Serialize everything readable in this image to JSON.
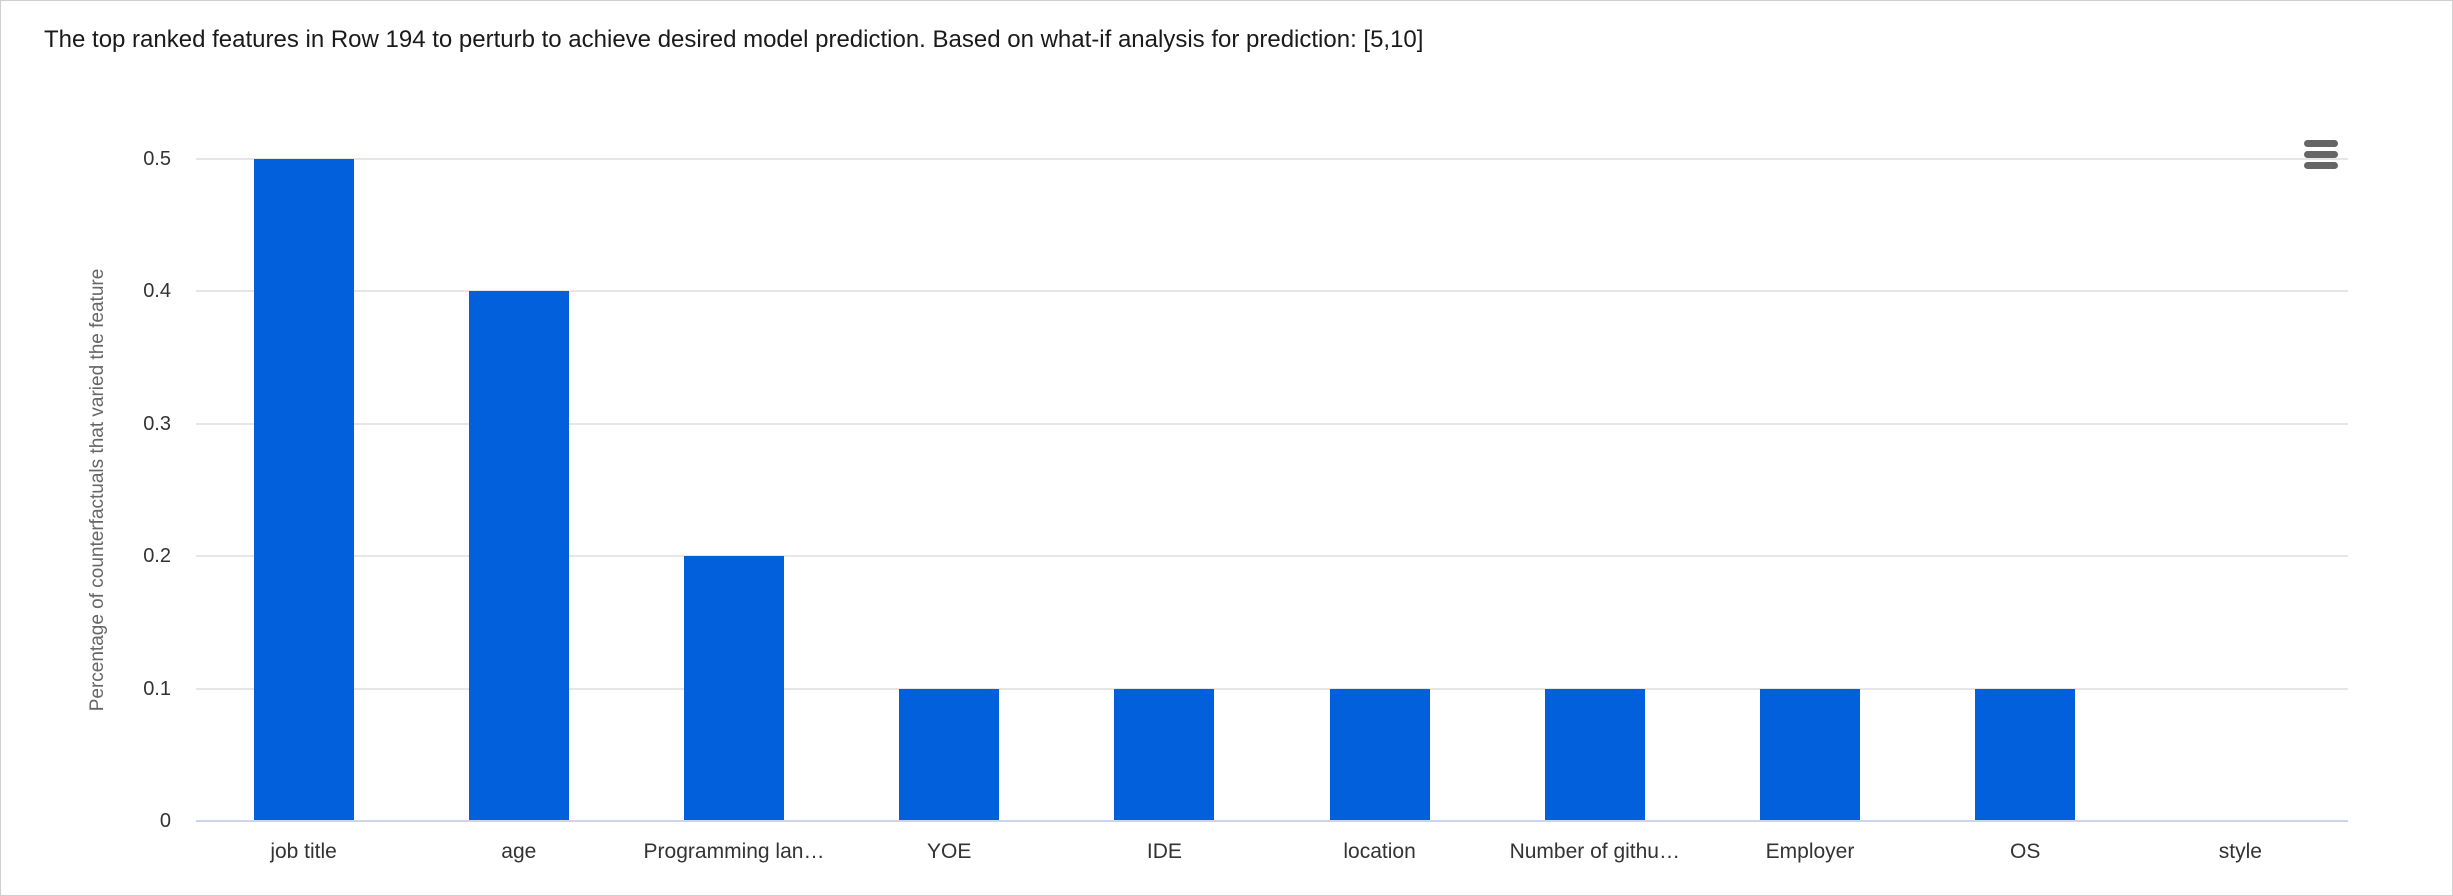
{
  "header": {
    "title": "The top ranked features in Row 194 to perturb to achieve desired model prediction. Based on what-if analysis for prediction: [5,10]"
  },
  "toolbar": {
    "menu_icon": "hamburger-icon",
    "menu_tooltip": "Chart context menu"
  },
  "chart_data": {
    "type": "bar",
    "categories": [
      "job title",
      "age",
      "Programming lan…",
      "YOE",
      "IDE",
      "location",
      "Number of githu…",
      "Employer",
      "OS",
      "style"
    ],
    "values": [
      0.5,
      0.4,
      0.2,
      0.1,
      0.1,
      0.1,
      0.1,
      0.1,
      0.1,
      0
    ],
    "title": "",
    "xlabel": "",
    "ylabel": "Percentage of counterfactuals that varied the feature",
    "ylim": [
      0,
      0.5
    ],
    "yticks": [
      0,
      0.1,
      0.2,
      0.3,
      0.4,
      0.5
    ],
    "ytick_labels": [
      "0",
      "0.1",
      "0.2",
      "0.3",
      "0.4",
      "0.5"
    ],
    "grid": true,
    "legend": "none",
    "colors": {
      "bar": "#0360dc",
      "gridline": "#e6e6e6",
      "axis_line": "#ccd6eb",
      "tick_label": "#333333",
      "axis_title": "#666666",
      "title_text": "#1a1a1a",
      "menu_icon": "#666666"
    }
  }
}
